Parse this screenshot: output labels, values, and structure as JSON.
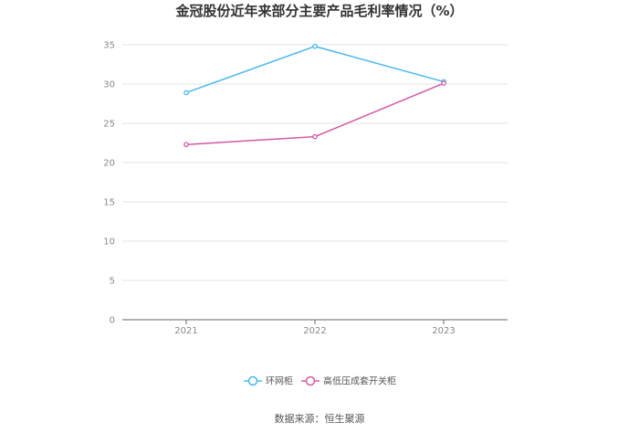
{
  "chart_data": {
    "type": "line",
    "title": "金冠股份近年来部分主要产品毛利率情况（%）",
    "categories": [
      "2021",
      "2022",
      "2023"
    ],
    "ylim": [
      0,
      35
    ],
    "yticks": [
      0,
      5,
      10,
      15,
      20,
      25,
      30,
      35
    ],
    "grid": true,
    "legend_position": "bottom",
    "series": [
      {
        "name": "环网柜",
        "values": [
          28.9,
          34.8,
          30.3
        ],
        "color": "#4ab8ea"
      },
      {
        "name": "高低压成套开关柜",
        "values": [
          22.3,
          23.3,
          30.1
        ],
        "color": "#d35aa5"
      }
    ]
  },
  "source": "数据来源：恒生聚源"
}
